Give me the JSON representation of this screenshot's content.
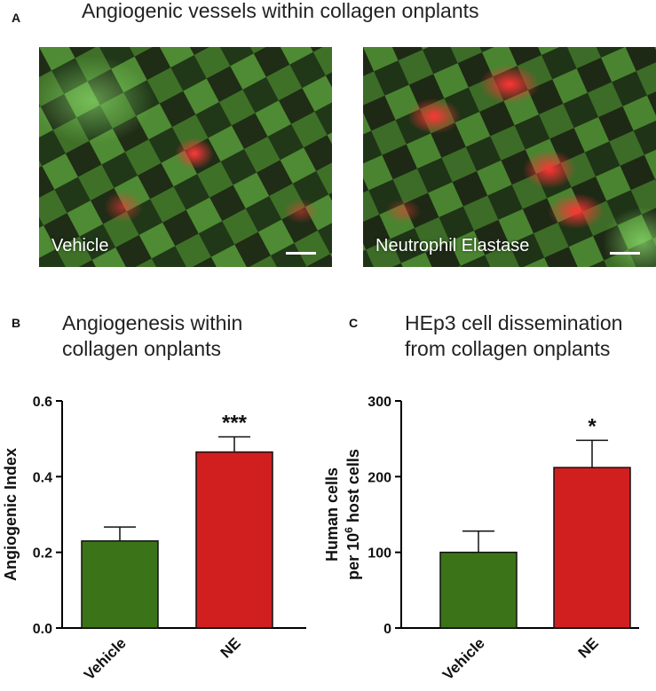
{
  "panel_a": {
    "letter": "A",
    "title": "Angiogenic vessels within collagen onplants",
    "images": [
      {
        "label": "Vehicle"
      },
      {
        "label": "Neutrophil Elastase"
      }
    ]
  },
  "panel_b": {
    "letter": "B",
    "title_lines": [
      "Angiogenesis within",
      "collagen onplants"
    ]
  },
  "panel_c": {
    "letter": "C",
    "title_lines": [
      "HEp3 cell dissemination",
      "from collagen onplants"
    ]
  },
  "chart_data": [
    {
      "type": "bar",
      "title": "Angiogenesis within collagen onplants",
      "categories": [
        "Vehicle",
        "NE"
      ],
      "values": [
        0.23,
        0.465
      ],
      "errors": [
        0.037,
        0.04
      ],
      "significance": [
        "",
        "***"
      ],
      "colors": [
        "#3b7418",
        "#d11f1f"
      ],
      "xlabel": "",
      "ylabel": "Angiogenic Index",
      "ylim": [
        0,
        0.6
      ],
      "yticks": [
        0.0,
        0.2,
        0.4,
        0.6
      ],
      "ytick_labels": [
        "0.0",
        "0.2",
        "0.4",
        "0.6"
      ]
    },
    {
      "type": "bar",
      "title": "HEp3 cell dissemination from collagen onplants",
      "categories": [
        "Vehicle",
        "NE"
      ],
      "values": [
        100,
        212
      ],
      "errors": [
        28,
        36
      ],
      "significance": [
        "",
        "*"
      ],
      "colors": [
        "#3b7418",
        "#d11f1f"
      ],
      "xlabel": "",
      "ylabel_lines": [
        "Human cells",
        "per 10",
        "6",
        " host cells"
      ],
      "ylim": [
        0,
        300
      ],
      "yticks": [
        0,
        100,
        200,
        300
      ],
      "ytick_labels": [
        "0",
        "100",
        "200",
        "300"
      ]
    }
  ]
}
